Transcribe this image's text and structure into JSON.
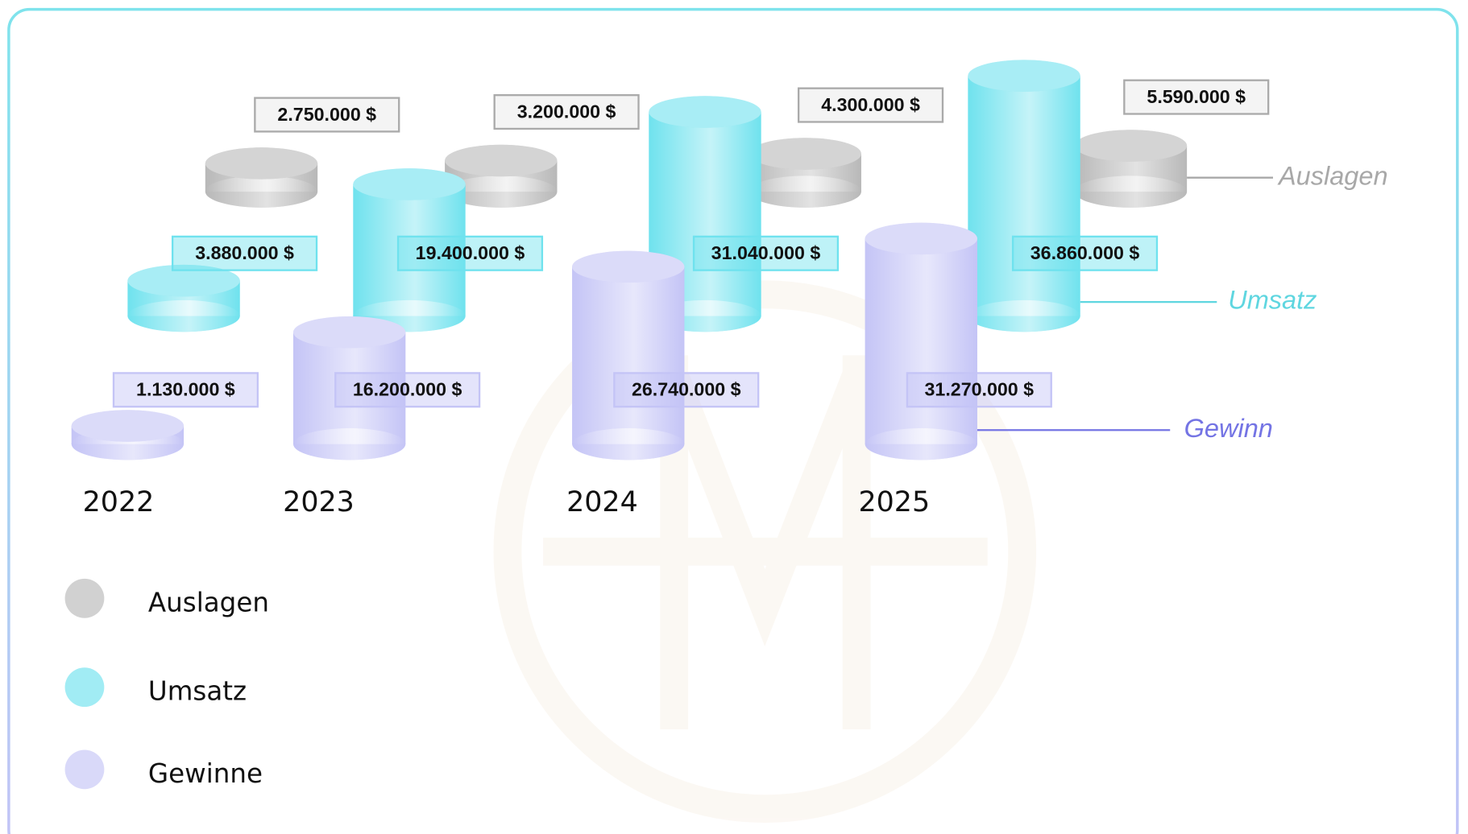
{
  "chart_data": {
    "type": "bar",
    "categories": [
      "2022",
      "2023",
      "2024",
      "2025"
    ],
    "series": [
      {
        "name": "Auslagen",
        "end_label": "Auslagen",
        "color": "#b8b8b8",
        "label_color": "#a8a8a8",
        "values": [
          2750000,
          3200000,
          4300000,
          5590000
        ],
        "value_labels": [
          "2.750.000 $",
          "3.200.000 $",
          "4.300.000 $",
          "5.590.000 $"
        ]
      },
      {
        "name": "Umsatz",
        "end_label": "Umsatz",
        "color": "#6fe2ee",
        "label_color": "#5fd6e0",
        "values": [
          3880000,
          19400000,
          31040000,
          36860000
        ],
        "value_labels": [
          "3.880.000 $",
          "19.400.000 $",
          "31.040.000 $",
          "36.860.000 $"
        ]
      },
      {
        "name": "Gewinne",
        "end_label": "Gewinn",
        "color": "#c4c4f6",
        "label_color": "#7474e4",
        "values": [
          1130000,
          16200000,
          26740000,
          31270000
        ],
        "value_labels": [
          "1.130.000 $",
          "16.200.000 $",
          "26.740.000 $",
          "31.270.000 $"
        ]
      }
    ]
  }
}
